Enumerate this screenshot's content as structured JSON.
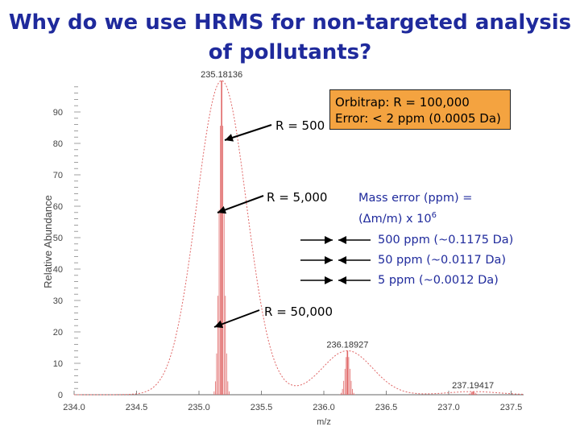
{
  "title": {
    "line1": "Why do we use HRMS for non-targeted analysis",
    "line2": "of pollutants?"
  },
  "annotations": {
    "r500": "R = 500",
    "r5000": "R = 5,000",
    "r50000": "R = 50,000",
    "orbitrap_line1": "Orbitrap: R = 100,000",
    "orbitrap_line2": "Error: < 2 ppm (0.0005 Da)",
    "mass_error_line1": "Mass error (ppm) =",
    "mass_error_line2_prefix": "(",
    "mass_error_delta": "Δ",
    "mass_error_line2_mid": "m/m) x 10",
    "mass_error_exp": "6",
    "ppm_items": [
      "500 ppm (~0.1175 Da)",
      "50 ppm (~0.0117 Da)",
      "5 ppm (~0.0012 Da)"
    ]
  },
  "colors": {
    "title": "#1f2a9c",
    "peak": "#e06666",
    "box_fill": "#f4a340",
    "note_text": "#1f2a9c"
  },
  "chart_data": {
    "type": "line",
    "xlabel": "m/z",
    "ylabel": "Relative Abundance",
    "xlim": [
      234.0,
      237.6
    ],
    "ylim": [
      0,
      100
    ],
    "xticks": [
      "234.0",
      "234.5",
      "235.0",
      "235.5",
      "236.0",
      "236.5",
      "237.0",
      "237.5"
    ],
    "xtick_values": [
      234.0,
      234.5,
      235.0,
      235.5,
      236.0,
      236.5,
      237.0,
      237.5
    ],
    "yticks": [
      "0",
      "10",
      "20",
      "30",
      "40",
      "50",
      "60",
      "70",
      "80",
      "90"
    ],
    "ytick_values": [
      0,
      10,
      20,
      30,
      40,
      50,
      60,
      70,
      80,
      90
    ],
    "peak_labels": [
      {
        "text": "235.18136",
        "x": 235.18136,
        "y": 100
      },
      {
        "text": "236.18927",
        "x": 236.18927,
        "y": 14
      },
      {
        "text": "237.19417",
        "x": 237.19417,
        "y": 1
      }
    ],
    "series": [
      {
        "resolution": 500,
        "peaks": [
          {
            "mz": 235.18136,
            "height": 100
          },
          {
            "mz": 236.18927,
            "height": 14
          },
          {
            "mz": 237.19417,
            "height": 1
          }
        ]
      },
      {
        "resolution": 5000,
        "peaks": [
          {
            "mz": 235.18136,
            "height": 100
          },
          {
            "mz": 236.18927,
            "height": 14
          },
          {
            "mz": 237.19417,
            "height": 1
          }
        ]
      },
      {
        "resolution": 50000,
        "peaks": [
          {
            "mz": 235.18136,
            "height": 100
          },
          {
            "mz": 236.18927,
            "height": 14
          },
          {
            "mz": 237.19417,
            "height": 1
          }
        ]
      }
    ],
    "grid": false
  }
}
